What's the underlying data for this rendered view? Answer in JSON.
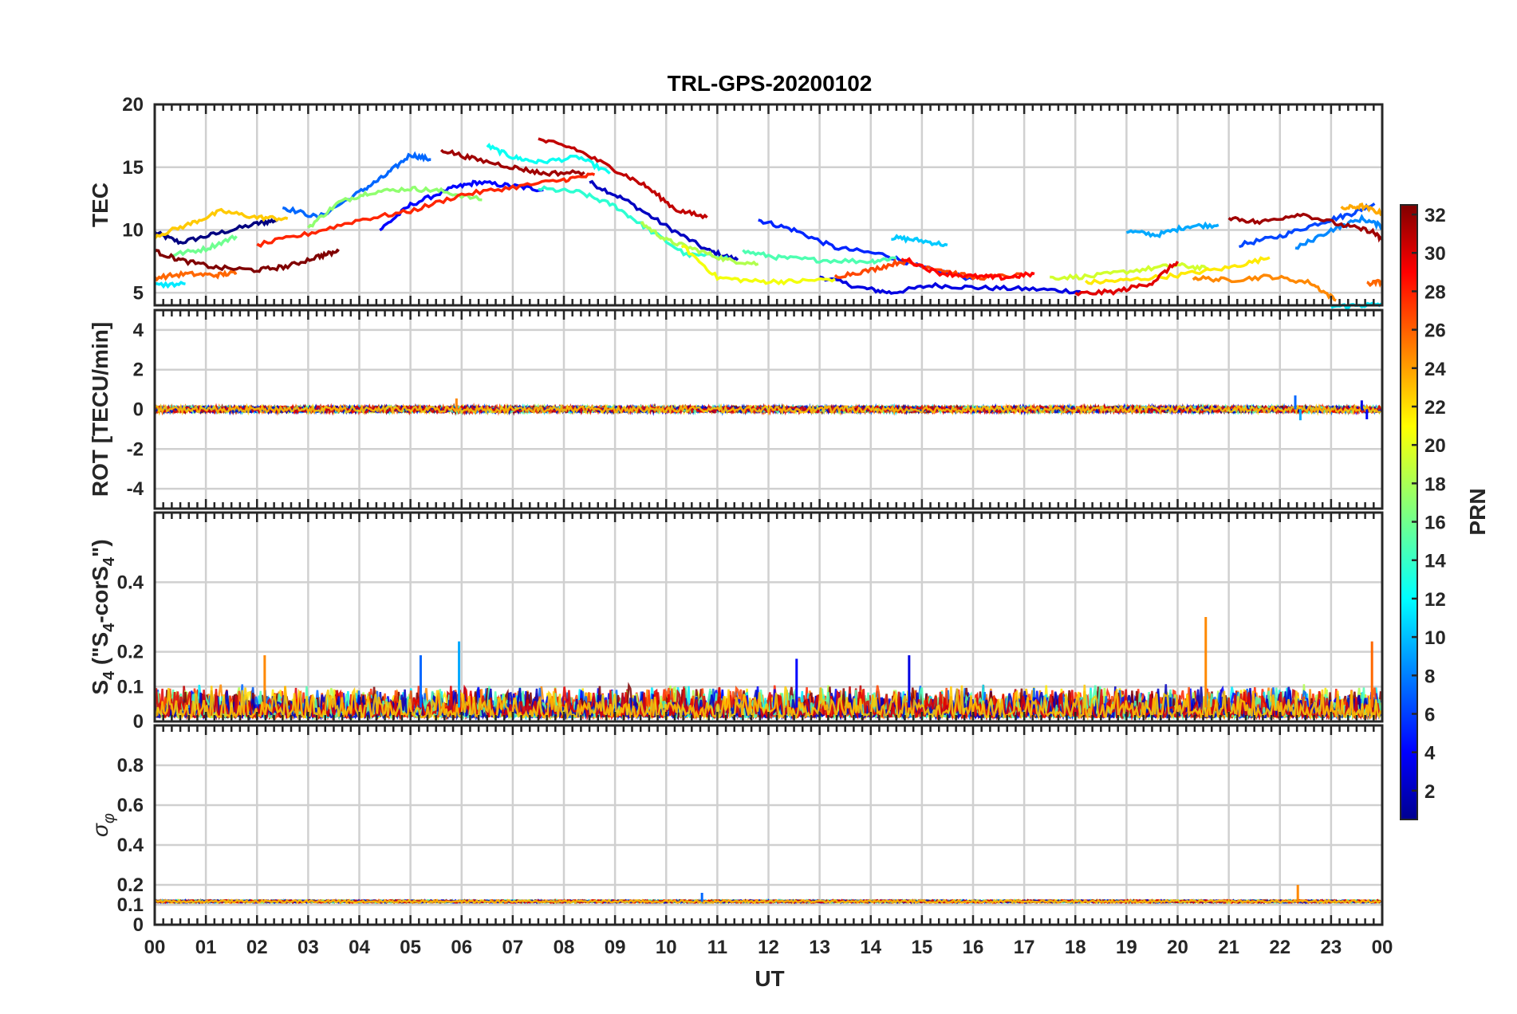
{
  "chart_data": {
    "type": "line",
    "title": "TRL-GPS-20200102",
    "xlabel": "UT",
    "x_ticks": [
      "00",
      "01",
      "02",
      "03",
      "04",
      "05",
      "06",
      "07",
      "08",
      "09",
      "10",
      "11",
      "12",
      "13",
      "14",
      "15",
      "16",
      "17",
      "18",
      "19",
      "20",
      "21",
      "22",
      "23",
      "00"
    ],
    "xlim": [
      0,
      24
    ],
    "colorbar": {
      "label": "PRN",
      "range": [
        1,
        32
      ],
      "ticks": [
        "2",
        "4",
        "6",
        "8",
        "10",
        "12",
        "14",
        "16",
        "18",
        "20",
        "22",
        "24",
        "26",
        "28",
        "30",
        "32"
      ]
    },
    "panels": [
      {
        "id": "tec",
        "ylabel": "TEC",
        "ylim": [
          4,
          20
        ],
        "yticks": [
          "5",
          "10",
          "15",
          "20"
        ],
        "ytick_values": [
          5,
          10,
          15,
          20
        ],
        "series": [
          {
            "prn": 1,
            "points": [
              [
                0,
                9.8
              ],
              [
                0.5,
                9.0
              ],
              [
                1.2,
                9.7
              ],
              [
                2.0,
                10.5
              ],
              [
                2.4,
                10.8
              ]
            ]
          },
          {
            "prn": 3,
            "points": [
              [
                8.5,
                13.8
              ],
              [
                9.2,
                12.4
              ],
              [
                10.0,
                10.3
              ],
              [
                10.8,
                8.4
              ],
              [
                11.4,
                7.6
              ]
            ]
          },
          {
            "prn": 4,
            "points": [
              [
                13.0,
                6.3
              ],
              [
                13.8,
                5.4
              ],
              [
                14.4,
                5.0
              ],
              [
                15.2,
                5.6
              ],
              [
                16.1,
                5.4
              ],
              [
                17.1,
                5.3
              ],
              [
                18.1,
                5.1
              ]
            ]
          },
          {
            "prn": 5,
            "points": [
              [
                4.4,
                10.0
              ],
              [
                5.0,
                12.0
              ],
              [
                5.8,
                13.3
              ],
              [
                6.3,
                13.8
              ],
              [
                7.0,
                13.5
              ],
              [
                7.6,
                13.2
              ]
            ]
          },
          {
            "prn": 6,
            "points": [
              [
                11.8,
                10.8
              ],
              [
                12.5,
                10.0
              ],
              [
                13.3,
                8.6
              ],
              [
                14.3,
                8.0
              ],
              [
                15.0,
                7.0
              ],
              [
                16.0,
                6.1
              ]
            ]
          },
          {
            "prn": 7,
            "points": [
              [
                21.2,
                8.8
              ],
              [
                22.0,
                9.5
              ],
              [
                22.8,
                10.6
              ],
              [
                23.4,
                11.3
              ],
              [
                23.85,
                12.1
              ]
            ]
          },
          {
            "prn": 8,
            "points": [
              [
                2.5,
                11.8
              ],
              [
                3.2,
                11.0
              ],
              [
                4.0,
                13.0
              ],
              [
                4.5,
                14.3
              ],
              [
                5.0,
                16.0
              ],
              [
                5.4,
                15.6
              ]
            ]
          },
          {
            "prn": 10,
            "points": [
              [
                19.0,
                9.9
              ],
              [
                19.6,
                9.6
              ],
              [
                20.2,
                10.3
              ],
              [
                20.8,
                10.4
              ]
            ]
          },
          {
            "prn": 11,
            "points": [
              [
                14.4,
                9.4
              ],
              [
                14.9,
                9.2
              ],
              [
                15.5,
                8.8
              ]
            ]
          },
          {
            "prn": 12,
            "points": [
              [
                0,
                5.6
              ],
              [
                0.6,
                5.7
              ]
            ]
          },
          {
            "prn": 13,
            "points": [
              [
                6.5,
                16.7
              ],
              [
                7.0,
                15.8
              ],
              [
                7.5,
                15.4
              ],
              [
                8.3,
                15.8
              ],
              [
                8.9,
                14.5
              ]
            ]
          },
          {
            "prn": 14,
            "points": [
              [
                7.5,
                13.3
              ],
              [
                8.3,
                13.0
              ],
              [
                9.0,
                11.9
              ],
              [
                9.6,
                10.2
              ],
              [
                10.4,
                8.0
              ],
              [
                11.2,
                7.9
              ]
            ]
          },
          {
            "prn": 15,
            "points": [
              [
                11.5,
                8.3
              ],
              [
                12.2,
                7.8
              ],
              [
                13.0,
                7.6
              ],
              [
                14.0,
                7.5
              ],
              [
                14.5,
                7.8
              ]
            ]
          },
          {
            "prn": 16,
            "points": [
              [
                0.3,
                8.0
              ],
              [
                1.0,
                8.5
              ],
              [
                1.6,
                9.5
              ]
            ]
          },
          {
            "prn": 17,
            "points": [
              [
                3.0,
                10.2
              ],
              [
                3.6,
                12.2
              ],
              [
                4.2,
                13.0
              ],
              [
                5.0,
                13.3
              ],
              [
                5.6,
                13.1
              ],
              [
                6.4,
                12.4
              ]
            ]
          },
          {
            "prn": 18,
            "points": [
              [
                9.5,
                10.6
              ],
              [
                10.0,
                9.2
              ],
              [
                10.6,
                8.4
              ],
              [
                11.2,
                7.6
              ],
              [
                11.8,
                7.3
              ]
            ]
          },
          {
            "prn": 19,
            "points": [
              [
                17.5,
                6.2
              ],
              [
                18.3,
                6.3
              ],
              [
                19.2,
                6.8
              ],
              [
                20.0,
                7.2
              ],
              [
                20.6,
                6.9
              ]
            ]
          },
          {
            "prn": 20,
            "points": [
              [
                10.3,
                8.8
              ],
              [
                11.0,
                6.2
              ],
              [
                11.8,
                5.9
              ],
              [
                12.5,
                5.9
              ],
              [
                13.3,
                6.1
              ]
            ]
          },
          {
            "prn": 21,
            "points": [
              [
                18.2,
                5.8
              ],
              [
                19.0,
                6.0
              ],
              [
                20.0,
                6.4
              ],
              [
                21.0,
                7.0
              ],
              [
                21.8,
                7.8
              ]
            ]
          },
          {
            "prn": 22,
            "points": [
              [
                0,
                9.5
              ],
              [
                0.7,
                10.5
              ],
              [
                1.3,
                11.5
              ],
              [
                2.0,
                11.0
              ],
              [
                2.6,
                10.9
              ]
            ]
          },
          {
            "prn": 23,
            "points": [
              [
                23.2,
                11.7
              ],
              [
                23.6,
                11.9
              ],
              [
                24.0,
                11.3
              ]
            ]
          },
          {
            "prn": 24,
            "points": [
              [
                20.3,
                6.2
              ],
              [
                21.0,
                6.0
              ],
              [
                21.8,
                6.3
              ],
              [
                22.6,
                5.8
              ],
              [
                23.1,
                4.4
              ]
            ]
          },
          {
            "prn": 25,
            "points": [
              [
                0,
                6.2
              ],
              [
                0.6,
                6.5
              ],
              [
                1.2,
                6.4
              ],
              [
                1.6,
                6.6
              ]
            ]
          },
          {
            "prn": 26,
            "points": [
              [
                13.3,
                6.3
              ],
              [
                14.0,
                6.8
              ],
              [
                14.6,
                7.5
              ],
              [
                15.2,
                7.0
              ],
              [
                16.0,
                6.2
              ],
              [
                17.0,
                6.4
              ]
            ]
          },
          {
            "prn": 27,
            "points": [
              [
                2.0,
                8.8
              ],
              [
                3.0,
                9.7
              ],
              [
                4.0,
                10.8
              ],
              [
                5.0,
                11.5
              ],
              [
                6.0,
                12.8
              ],
              [
                7.0,
                13.4
              ],
              [
                8.0,
                14.0
              ],
              [
                8.6,
                14.4
              ]
            ]
          },
          {
            "prn": 29,
            "points": [
              [
                18.0,
                4.9
              ],
              [
                18.8,
                5.1
              ],
              [
                19.5,
                5.8
              ],
              [
                20.0,
                7.5
              ]
            ]
          },
          {
            "prn": 30,
            "points": [
              [
                7.5,
                17.2
              ],
              [
                8.2,
                16.5
              ],
              [
                9.0,
                14.8
              ],
              [
                9.6,
                13.5
              ],
              [
                10.2,
                11.6
              ],
              [
                10.8,
                11.0
              ]
            ]
          },
          {
            "prn": 31,
            "points": [
              [
                5.6,
                16.4
              ],
              [
                6.2,
                15.7
              ],
              [
                7.0,
                15.0
              ],
              [
                7.6,
                14.5
              ],
              [
                8.4,
                14.6
              ]
            ]
          },
          {
            "prn": 32,
            "points": [
              [
                0,
                8.3
              ],
              [
                0.5,
                7.6
              ],
              [
                1.2,
                7.0
              ],
              [
                2.0,
                6.8
              ],
              [
                2.6,
                7.1
              ],
              [
                3.2,
                7.9
              ],
              [
                3.6,
                8.3
              ]
            ]
          },
          {
            "prn": 28,
            "points": [
              [
                14.6,
                7.8
              ],
              [
                15.3,
                6.6
              ],
              [
                16.0,
                6.3
              ],
              [
                16.6,
                6.2
              ],
              [
                17.2,
                6.5
              ]
            ]
          },
          {
            "prn": 9,
            "points": [
              [
                22.3,
                8.5
              ],
              [
                23.0,
                10.0
              ],
              [
                23.6,
                10.9
              ],
              [
                24.0,
                10.3
              ]
            ]
          },
          {
            "prn": 31,
            "points": [
              [
                21.0,
                11.0
              ],
              [
                21.6,
                10.6
              ],
              [
                22.4,
                11.3
              ],
              [
                23.2,
                10.4
              ],
              [
                23.8,
                9.9
              ],
              [
                24.0,
                9.2
              ]
            ]
          },
          {
            "prn": 12,
            "points": [
              [
                23.0,
                3.9
              ],
              [
                23.6,
                4.0
              ],
              [
                24.0,
                4.1
              ]
            ]
          },
          {
            "prn": 25,
            "points": [
              [
                23.7,
                5.7
              ],
              [
                24.0,
                5.9
              ]
            ]
          }
        ]
      },
      {
        "id": "rot",
        "ylabel": "ROT [TECU/min]",
        "ylim": [
          -5,
          5
        ],
        "yticks": [
          "-4",
          "-2",
          "0",
          "2",
          "4"
        ],
        "ytick_values": [
          -4,
          -2,
          0,
          2,
          4
        ],
        "baseline": 0,
        "noise_amplitude": 0.15,
        "spikes": [
          [
            5.9,
            0.55
          ],
          [
            22.3,
            0.7
          ],
          [
            22.4,
            -0.55
          ],
          [
            23.7,
            -0.5
          ],
          [
            23.6,
            0.45
          ]
        ]
      },
      {
        "id": "s4",
        "ylabel": "S4 (\"S4-corS4\")",
        "ylabel_parts": [
          "S",
          "4",
          " (\"S",
          "4",
          "-corS",
          "4",
          "\")"
        ],
        "ylim": [
          0,
          0.6
        ],
        "yticks": [
          "0",
          "0.1",
          "0.2",
          "0.4"
        ],
        "ytick_values": [
          0,
          0.1,
          0.2,
          0.4
        ],
        "baseline": 0.04,
        "noise_amplitude": 0.06,
        "spikes": [
          [
            2.15,
            0.19
          ],
          [
            5.2,
            0.19
          ],
          [
            5.95,
            0.23
          ],
          [
            12.55,
            0.18
          ],
          [
            14.75,
            0.19
          ],
          [
            20.55,
            0.3
          ],
          [
            23.8,
            0.23
          ]
        ]
      },
      {
        "id": "sigma",
        "ylabel": "σφ",
        "ylabel_parts": [
          "σ",
          "φ"
        ],
        "ylim": [
          0,
          1
        ],
        "yticks": [
          "0",
          "0.1",
          "0.2",
          "0.4",
          "0.6",
          "0.8"
        ],
        "ytick_values": [
          0,
          0.1,
          0.2,
          0.4,
          0.6,
          0.8
        ],
        "baseline": 0.115,
        "noise_amplitude": 0.012,
        "spikes": [
          [
            22.35,
            0.2
          ],
          [
            10.7,
            0.16
          ]
        ]
      }
    ]
  }
}
